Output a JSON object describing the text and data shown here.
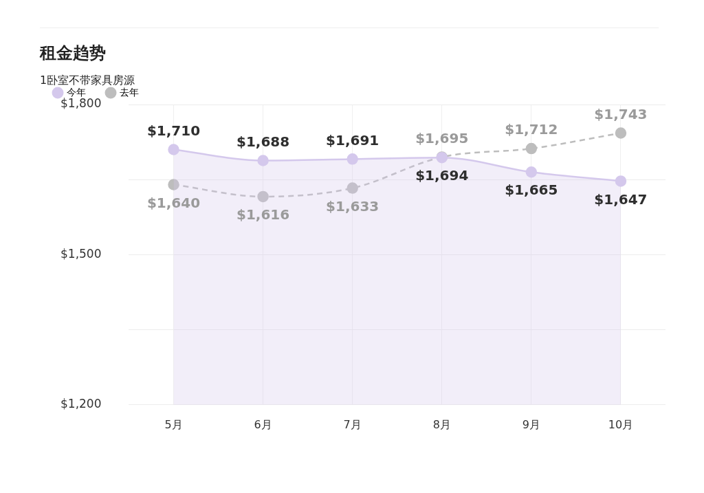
{
  "chart_data": {
    "type": "line",
    "title": "租金趋势",
    "subtitle": "1卧室不带家具房源",
    "categories": [
      "5月",
      "6月",
      "7月",
      "8月",
      "9月",
      "10月"
    ],
    "series": [
      {
        "name": "今年",
        "type": "area",
        "color": "#d4c8ec",
        "values": [
          1710,
          1688,
          1691,
          1694,
          1665,
          1647
        ],
        "value_labels": [
          "$1,710",
          "$1,688",
          "$1,691",
          "$1,694",
          "$1,665",
          "$1,647"
        ]
      },
      {
        "name": "去年",
        "type": "line",
        "line_style": "dashed",
        "color": "#bdbdbd",
        "values": [
          1640,
          1616,
          1633,
          1695,
          1712,
          1743
        ],
        "value_labels": [
          "$1,640",
          "$1,616",
          "$1,633",
          "$1,695",
          "$1,712",
          "$1,743"
        ]
      }
    ],
    "ylim": [
      1200,
      1800
    ],
    "yticks": [
      {
        "value": 1200,
        "label": "$1,200"
      },
      {
        "value": 1350,
        "label": null
      },
      {
        "value": 1500,
        "label": "$1,500"
      },
      {
        "value": 1650,
        "label": null
      },
      {
        "value": 1800,
        "label": "$1,800"
      }
    ],
    "grid": true,
    "legend": "top",
    "marker": "circle"
  }
}
